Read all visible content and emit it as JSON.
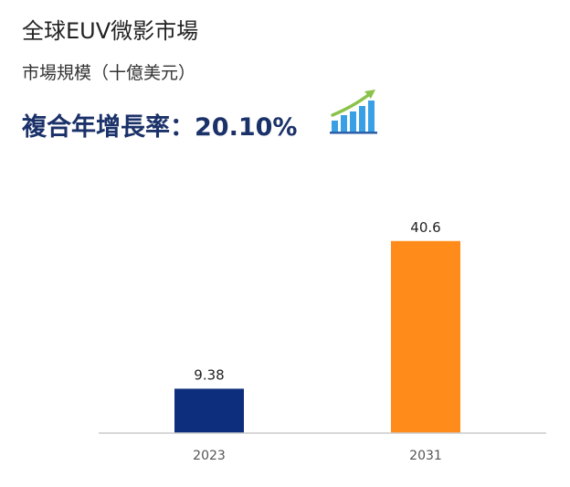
{
  "header": {
    "title": "全球EUV微影市場",
    "subtitle": "市場規模（十億美元）",
    "cagr_label": "複合年增長率：",
    "cagr_value": "20.10%"
  },
  "icons": {
    "growth": "bar-chart-growth-arrow-icon"
  },
  "colors": {
    "title_blue": "#1b3169",
    "bar_2023": "#0d2e7d",
    "bar_2031": "#ff8c1a",
    "icon_green": "#8bc34a",
    "icon_blue": "#3aa0e6"
  },
  "chart_data": {
    "type": "bar",
    "categories": [
      "2023",
      "2031"
    ],
    "values": [
      9.38,
      40.6
    ],
    "value_labels": [
      "9.38",
      "40.6"
    ],
    "title": "",
    "xlabel": "",
    "ylabel": "",
    "ylim": [
      0,
      45
    ],
    "grid": false,
    "legend": "none"
  }
}
